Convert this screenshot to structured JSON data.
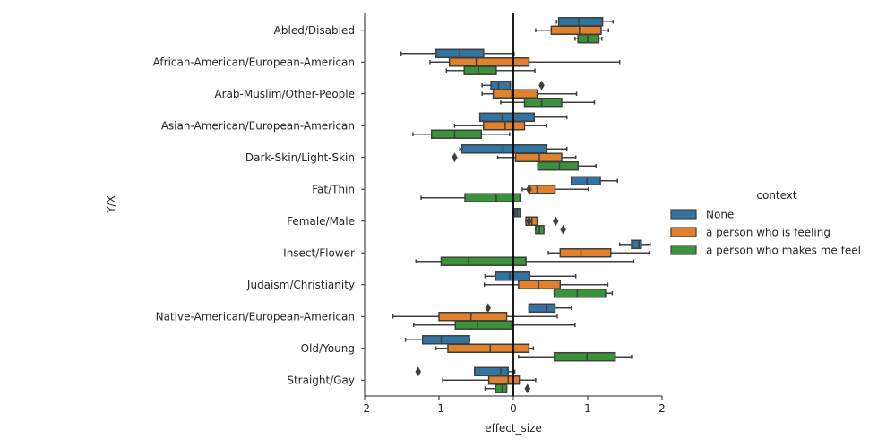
{
  "chart_data": {
    "type": "boxplot",
    "orientation": "horizontal",
    "title": "",
    "xlabel": "effect_size",
    "ylabel": "Y/X",
    "xlim": [
      -2,
      2
    ],
    "xticks": [
      "-2",
      "-1",
      "0",
      "1",
      "2"
    ],
    "reference_line_x": 0,
    "grid": false,
    "legend": {
      "title": "context",
      "placement": "right"
    },
    "categories": [
      "Abled/Disabled",
      "African-American/European-American",
      "Arab-Muslim/Other-People",
      "Asian-American/European-American",
      "Dark-Skin/Light-Skin",
      "Fat/Thin",
      "Female/Male",
      "Insect/Flower",
      "Judaism/Christianity",
      "Native-American/European-American",
      "Old/Young",
      "Straight/Gay"
    ],
    "series": [
      {
        "name": "None",
        "color": "#3274a1",
        "boxes": [
          {
            "whislo": 0.58,
            "q1": 0.61,
            "med": 0.88,
            "q3": 1.2,
            "whishi": 1.34,
            "fliers": []
          },
          {
            "whislo": -1.51,
            "q1": -1.04,
            "med": -0.72,
            "q3": -0.4,
            "whishi": 0.01,
            "fliers": []
          },
          {
            "whislo": -0.42,
            "q1": -0.3,
            "med": -0.2,
            "q3": -0.04,
            "whishi": -0.04,
            "fliers": [
              0.38
            ]
          },
          {
            "whislo": -0.45,
            "q1": -0.45,
            "med": -0.15,
            "q3": 0.28,
            "whishi": 0.72,
            "fliers": []
          },
          {
            "whislo": -0.72,
            "q1": -0.69,
            "med": -0.14,
            "q3": 0.45,
            "whishi": 0.72,
            "fliers": []
          },
          {
            "whislo": 0.78,
            "q1": 0.78,
            "med": 0.99,
            "q3": 1.17,
            "whishi": 1.4,
            "fliers": []
          },
          {
            "whislo": 0.0,
            "q1": 0.02,
            "med": 0.05,
            "q3": 0.09,
            "whishi": 0.09,
            "fliers": []
          },
          {
            "whislo": 1.43,
            "q1": 1.59,
            "med": 1.69,
            "q3": 1.72,
            "whishi": 1.84,
            "fliers": []
          },
          {
            "whislo": -0.38,
            "q1": -0.24,
            "med": -0.05,
            "q3": 0.22,
            "whishi": 0.84,
            "fliers": []
          },
          {
            "whislo": 0.21,
            "q1": 0.21,
            "med": 0.45,
            "q3": 0.56,
            "whishi": 0.78,
            "fliers": [
              -0.34
            ]
          },
          {
            "whislo": -1.45,
            "q1": -1.22,
            "med": -0.97,
            "q3": -0.59,
            "whishi": -0.59,
            "fliers": []
          },
          {
            "whislo": -0.52,
            "q1": -0.52,
            "med": -0.17,
            "q3": -0.07,
            "whishi": 0.02,
            "fliers": [
              -1.28
            ]
          }
        ]
      },
      {
        "name": "a person who is feeling",
        "color": "#e1812c",
        "boxes": [
          {
            "whislo": 0.3,
            "q1": 0.51,
            "med": 0.89,
            "q3": 1.18,
            "whishi": 1.28,
            "fliers": []
          },
          {
            "whislo": -1.12,
            "q1": -0.86,
            "med": -0.5,
            "q3": 0.21,
            "whishi": 1.43,
            "fliers": []
          },
          {
            "whislo": -0.42,
            "q1": -0.27,
            "med": -0.02,
            "q3": 0.32,
            "whishi": 0.85,
            "fliers": []
          },
          {
            "whislo": -0.79,
            "q1": -0.4,
            "med": -0.11,
            "q3": 0.15,
            "whishi": 0.45,
            "fliers": []
          },
          {
            "whislo": -0.21,
            "q1": 0.03,
            "med": 0.35,
            "q3": 0.65,
            "whishi": 0.84,
            "fliers": [
              -0.79
            ]
          },
          {
            "whislo": 0.12,
            "q1": 0.22,
            "med": 0.32,
            "q3": 0.56,
            "whishi": 1.01,
            "fliers": [
              0.21
            ]
          },
          {
            "whislo": 0.17,
            "q1": 0.17,
            "med": 0.25,
            "q3": 0.32,
            "whishi": 0.32,
            "fliers": [
              0.21,
              0.57
            ]
          },
          {
            "whislo": 0.47,
            "q1": 0.63,
            "med": 0.91,
            "q3": 1.31,
            "whishi": 1.83,
            "fliers": []
          },
          {
            "whislo": -0.39,
            "q1": 0.07,
            "med": 0.34,
            "q3": 0.63,
            "whishi": 1.27,
            "fliers": []
          },
          {
            "whislo": -1.62,
            "q1": -1.0,
            "med": -0.57,
            "q3": -0.09,
            "whishi": 0.59,
            "fliers": []
          },
          {
            "whislo": -1.04,
            "q1": -0.88,
            "med": -0.31,
            "q3": 0.21,
            "whishi": 0.27,
            "fliers": []
          },
          {
            "whislo": -0.95,
            "q1": -0.33,
            "med": -0.07,
            "q3": 0.08,
            "whishi": 0.3,
            "fliers": []
          }
        ]
      },
      {
        "name": "a person who makes me feel",
        "color": "#3a923a",
        "boxes": [
          {
            "whislo": 0.83,
            "q1": 0.87,
            "med": 1.0,
            "q3": 1.15,
            "whishi": 1.19,
            "fliers": []
          },
          {
            "whislo": -0.9,
            "q1": -0.66,
            "med": -0.47,
            "q3": -0.23,
            "whishi": 0.29,
            "fliers": []
          },
          {
            "whislo": -0.17,
            "q1": 0.15,
            "med": 0.38,
            "q3": 0.65,
            "whishi": 1.09,
            "fliers": []
          },
          {
            "whislo": -1.35,
            "q1": -1.1,
            "med": -0.79,
            "q3": -0.43,
            "whishi": -0.05,
            "fliers": []
          },
          {
            "whislo": 0.33,
            "q1": 0.33,
            "med": 0.62,
            "q3": 0.87,
            "whishi": 1.11,
            "fliers": []
          },
          {
            "whislo": -1.24,
            "q1": -0.65,
            "med": -0.23,
            "q3": 0.09,
            "whishi": 0.09,
            "fliers": []
          },
          {
            "whislo": 0.3,
            "q1": 0.3,
            "med": 0.35,
            "q3": 0.41,
            "whishi": 0.41,
            "fliers": [
              0.67
            ]
          },
          {
            "whislo": -1.31,
            "q1": -0.97,
            "med": -0.6,
            "q3": 0.17,
            "whishi": 1.62,
            "fliers": []
          },
          {
            "whislo": 0.55,
            "q1": 0.55,
            "med": 0.86,
            "q3": 1.24,
            "whishi": 1.33,
            "fliers": []
          },
          {
            "whislo": -1.34,
            "q1": -0.78,
            "med": -0.48,
            "q3": -0.02,
            "whishi": 0.83,
            "fliers": []
          },
          {
            "whislo": 0.07,
            "q1": 0.55,
            "med": 0.99,
            "q3": 1.37,
            "whishi": 1.59,
            "fliers": []
          },
          {
            "whislo": -0.38,
            "q1": -0.24,
            "med": -0.15,
            "q3": -0.09,
            "whishi": -0.09,
            "fliers": [
              0.19
            ]
          }
        ]
      }
    ]
  }
}
